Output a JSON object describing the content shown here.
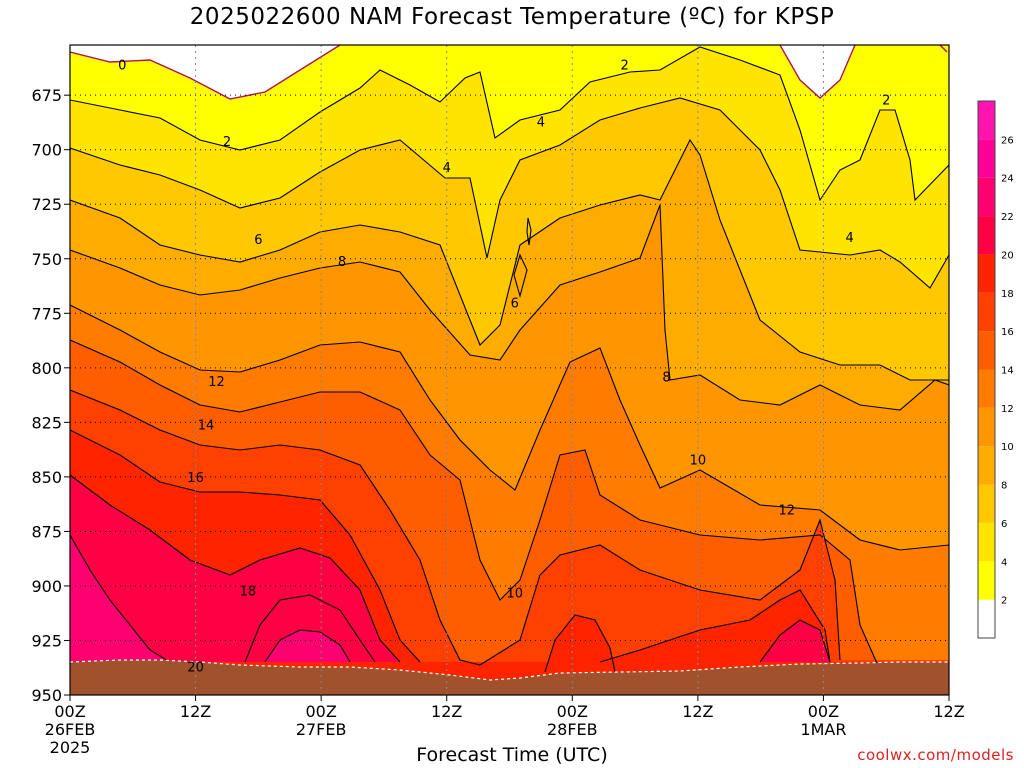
{
  "chart_data": {
    "type": "contour",
    "title": "2025022600 NAM Forecast Temperature (ºC) for KPSP",
    "xlabel": "Forecast Time (UTC)",
    "ylabel": "",
    "credit": "coolwx.com/models",
    "y_axis": {
      "scale": "pressure (inverted)",
      "ticks": [
        675,
        700,
        725,
        750,
        775,
        800,
        825,
        850,
        875,
        900,
        925,
        950
      ],
      "range": [
        950,
        652
      ]
    },
    "x_axis": {
      "range_hours": [
        0,
        84
      ],
      "ticks": [
        {
          "hour": 0,
          "lines": [
            "00Z",
            "26FEB",
            "2025"
          ]
        },
        {
          "hour": 12,
          "lines": [
            "12Z"
          ]
        },
        {
          "hour": 24,
          "lines": [
            "00Z",
            "27FEB"
          ]
        },
        {
          "hour": 36,
          "lines": [
            "12Z"
          ]
        },
        {
          "hour": 48,
          "lines": [
            "00Z",
            "28FEB"
          ]
        },
        {
          "hour": 60,
          "lines": [
            "12Z"
          ]
        },
        {
          "hour": 72,
          "lines": [
            "00Z",
            "1MAR"
          ]
        },
        {
          "hour": 84,
          "lines": [
            "12Z"
          ]
        }
      ]
    },
    "grid": true,
    "colorbar": {
      "levels": [
        2,
        4,
        6,
        8,
        10,
        12,
        14,
        16,
        18,
        20,
        22,
        24,
        26
      ],
      "colors": [
        "#ffffff",
        "#ffff00",
        "#ffe400",
        "#ffc800",
        "#ffac00",
        "#ff9600",
        "#ff7c00",
        "#ff5e00",
        "#ff4000",
        "#ff2400",
        "#ff0044",
        "#ff0070",
        "#ff0096",
        "#ff14b0"
      ]
    },
    "contour_labels": [
      {
        "value": "0",
        "hour": 5,
        "p": 661
      },
      {
        "value": "2",
        "hour": 15,
        "p": 696
      },
      {
        "value": "2",
        "hour": 53,
        "p": 661
      },
      {
        "value": "2",
        "hour": 78,
        "p": 677
      },
      {
        "value": "4",
        "hour": 36,
        "p": 708
      },
      {
        "value": "4",
        "hour": 45,
        "p": 687
      },
      {
        "value": "4",
        "hour": 74.5,
        "p": 740
      },
      {
        "value": "6",
        "hour": 18,
        "p": 741
      },
      {
        "value": "6",
        "hour": 42.5,
        "p": 770
      },
      {
        "value": "8",
        "hour": 26,
        "p": 751
      },
      {
        "value": "8",
        "hour": 57,
        "p": 804
      },
      {
        "value": "10",
        "hour": 42.5,
        "p": 903
      },
      {
        "value": "10",
        "hour": 60,
        "p": 842
      },
      {
        "value": "12",
        "hour": 14,
        "p": 806
      },
      {
        "value": "12",
        "hour": 68.5,
        "p": 865
      },
      {
        "value": "14",
        "hour": 13,
        "p": 826
      },
      {
        "value": "16",
        "hour": 12,
        "p": 850
      },
      {
        "value": "18",
        "hour": 17,
        "p": 902
      },
      {
        "value": "20",
        "hour": 12,
        "p": 937
      }
    ]
  }
}
